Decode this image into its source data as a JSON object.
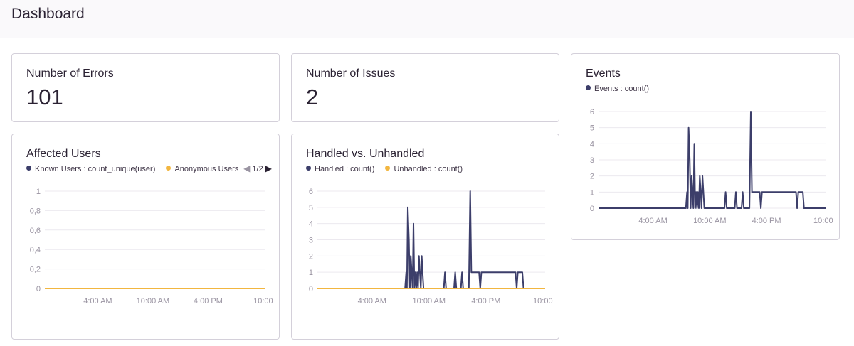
{
  "header": {
    "title": "Dashboard"
  },
  "colors": {
    "known": "#3c3e6a",
    "anonymous": "#f2b640",
    "grid": "#ece9ef"
  },
  "cards": {
    "errors": {
      "title": "Number of Errors",
      "value": "101"
    },
    "issues": {
      "title": "Number of Issues",
      "value": "2"
    },
    "events": {
      "title": "Events",
      "legend": [
        "Events : count()"
      ]
    },
    "affected": {
      "title": "Affected Users",
      "legend": [
        "Known Users : count_unique(user)",
        "Anonymous Users : count_unique(user)"
      ],
      "pager": "1/2"
    },
    "handled": {
      "title": "Handled vs. Unhandled",
      "legend": [
        "Handled : count()",
        "Unhandled : count()"
      ]
    }
  },
  "chart_data": [
    {
      "id": "events",
      "type": "line",
      "title": "Events",
      "yticks": [
        "0",
        "1",
        "2",
        "3",
        "4",
        "5",
        "6"
      ],
      "ylim": [
        0,
        6
      ],
      "xticks": [
        {
          "label": "4:00 AM",
          "x": 0.24
        },
        {
          "label": "10:00 AM",
          "x": 0.49
        },
        {
          "label": "4:00 PM",
          "x": 0.74
        },
        {
          "label": "10:00",
          "x": 0.99
        }
      ],
      "series": [
        {
          "name": "Events : count()",
          "color": "#3c3e6a",
          "points": [
            [
              0,
              0
            ],
            [
              0.385,
              0
            ],
            [
              0.39,
              1
            ],
            [
              0.393,
              0
            ],
            [
              0.397,
              5
            ],
            [
              0.402,
              3
            ],
            [
              0.406,
              0
            ],
            [
              0.41,
              2
            ],
            [
              0.414,
              1
            ],
            [
              0.418,
              0
            ],
            [
              0.422,
              4
            ],
            [
              0.426,
              0
            ],
            [
              0.43,
              1
            ],
            [
              0.434,
              0
            ],
            [
              0.438,
              1
            ],
            [
              0.442,
              0
            ],
            [
              0.446,
              2
            ],
            [
              0.45,
              1
            ],
            [
              0.454,
              0
            ],
            [
              0.458,
              2
            ],
            [
              0.462,
              1
            ],
            [
              0.466,
              0
            ],
            [
              0.555,
              0
            ],
            [
              0.56,
              1
            ],
            [
              0.565,
              0
            ],
            [
              0.6,
              0
            ],
            [
              0.605,
              1
            ],
            [
              0.61,
              0
            ],
            [
              0.63,
              0
            ],
            [
              0.635,
              1
            ],
            [
              0.64,
              0
            ],
            [
              0.665,
              0
            ],
            [
              0.671,
              6
            ],
            [
              0.676,
              1
            ],
            [
              0.68,
              1
            ],
            [
              0.71,
              1
            ],
            [
              0.715,
              0
            ],
            [
              0.72,
              1
            ],
            [
              0.87,
              1
            ],
            [
              0.875,
              0
            ],
            [
              0.88,
              1
            ],
            [
              0.9,
              1
            ],
            [
              0.905,
              0
            ],
            [
              1,
              0
            ]
          ]
        }
      ]
    },
    {
      "id": "affected",
      "type": "line",
      "title": "Affected Users",
      "yticks": [
        "0",
        "0,2",
        "0,4",
        "0,6",
        "0,8",
        "1"
      ],
      "ylim": [
        0,
        1
      ],
      "xticks": [
        {
          "label": "4:00 AM",
          "x": 0.24
        },
        {
          "label": "10:00 AM",
          "x": 0.49
        },
        {
          "label": "4:00 PM",
          "x": 0.74
        },
        {
          "label": "10:00",
          "x": 0.99
        }
      ],
      "series": [
        {
          "name": "Known Users : count_unique(user)",
          "color": "#3c3e6a",
          "points": [
            [
              0,
              0
            ],
            [
              1,
              0
            ]
          ]
        },
        {
          "name": "Anonymous Users : count_unique(user)",
          "color": "#f2b640",
          "points": [
            [
              0,
              0
            ],
            [
              1,
              0
            ]
          ]
        }
      ]
    },
    {
      "id": "handled",
      "type": "line",
      "title": "Handled vs. Unhandled",
      "yticks": [
        "0",
        "1",
        "2",
        "3",
        "4",
        "5",
        "6"
      ],
      "ylim": [
        0,
        6
      ],
      "xticks": [
        {
          "label": "4:00 AM",
          "x": 0.24
        },
        {
          "label": "10:00 AM",
          "x": 0.49
        },
        {
          "label": "4:00 PM",
          "x": 0.74
        },
        {
          "label": "10:00",
          "x": 0.99
        }
      ],
      "series": [
        {
          "name": "Handled : count()",
          "color": "#3c3e6a",
          "points": [
            [
              0,
              0
            ],
            [
              0.385,
              0
            ],
            [
              0.39,
              1
            ],
            [
              0.393,
              0
            ],
            [
              0.397,
              5
            ],
            [
              0.402,
              3
            ],
            [
              0.406,
              0
            ],
            [
              0.41,
              2
            ],
            [
              0.414,
              1
            ],
            [
              0.418,
              0
            ],
            [
              0.422,
              4
            ],
            [
              0.426,
              0
            ],
            [
              0.43,
              1
            ],
            [
              0.434,
              0
            ],
            [
              0.438,
              1
            ],
            [
              0.442,
              0
            ],
            [
              0.446,
              2
            ],
            [
              0.45,
              1
            ],
            [
              0.454,
              0
            ],
            [
              0.458,
              2
            ],
            [
              0.462,
              1
            ],
            [
              0.466,
              0
            ],
            [
              0.555,
              0
            ],
            [
              0.56,
              1
            ],
            [
              0.565,
              0
            ],
            [
              0.6,
              0
            ],
            [
              0.605,
              1
            ],
            [
              0.61,
              0
            ],
            [
              0.63,
              0
            ],
            [
              0.635,
              1
            ],
            [
              0.64,
              0
            ],
            [
              0.665,
              0
            ],
            [
              0.671,
              6
            ],
            [
              0.676,
              1
            ],
            [
              0.68,
              1
            ],
            [
              0.71,
              1
            ],
            [
              0.715,
              0
            ],
            [
              0.72,
              1
            ],
            [
              0.87,
              1
            ],
            [
              0.875,
              0
            ],
            [
              0.88,
              1
            ],
            [
              0.9,
              1
            ],
            [
              0.905,
              0
            ],
            [
              1,
              0
            ]
          ]
        },
        {
          "name": "Unhandled : count()",
          "color": "#f2b640",
          "points": [
            [
              0,
              0
            ],
            [
              1,
              0
            ]
          ]
        }
      ]
    }
  ]
}
